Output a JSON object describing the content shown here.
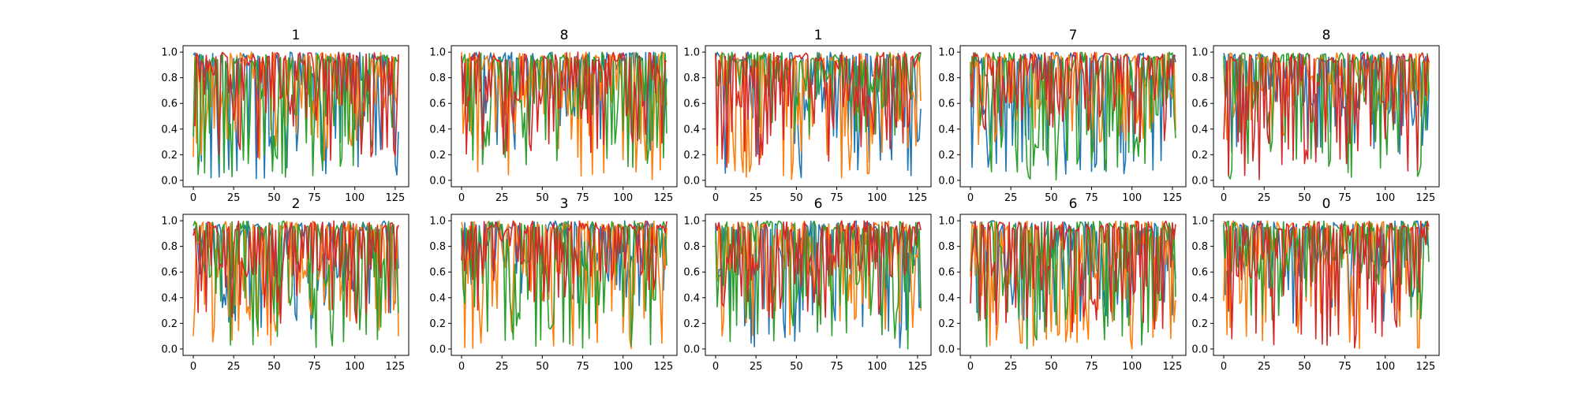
{
  "chart_data": [
    {
      "type": "line",
      "title": "1",
      "x_range": [
        0,
        127
      ],
      "ylim": [
        0.0,
        1.0
      ],
      "xticks": [
        "0",
        "25",
        "50",
        "75",
        "100",
        "125"
      ],
      "yticks": [
        "0.0",
        "0.2",
        "0.4",
        "0.6",
        "0.8",
        "1.0"
      ],
      "grid": false,
      "series_colors": [
        "#1f77b4",
        "#ff7f0e",
        "#2ca02c",
        "#d62728"
      ],
      "series_levels": [
        [
          0.0,
          1.0
        ],
        [
          0.15,
          1.0
        ],
        [
          0.0,
          1.0
        ],
        [
          0.15,
          1.0
        ]
      ],
      "seed": 11
    },
    {
      "type": "line",
      "title": "8",
      "x_range": [
        0,
        127
      ],
      "ylim": [
        0.0,
        1.0
      ],
      "xticks": [
        "0",
        "25",
        "50",
        "75",
        "100",
        "125"
      ],
      "yticks": [
        "0.0",
        "0.2",
        "0.4",
        "0.6",
        "0.8",
        "1.0"
      ],
      "grid": false,
      "series_colors": [
        "#1f77b4",
        "#ff7f0e",
        "#2ca02c",
        "#d62728"
      ],
      "series_levels": [
        [
          0.2,
          1.0
        ],
        [
          0.0,
          1.0
        ],
        [
          0.1,
          1.0
        ],
        [
          0.2,
          1.0
        ]
      ],
      "seed": 23
    },
    {
      "type": "line",
      "title": "1",
      "x_range": [
        0,
        127
      ],
      "ylim": [
        0.0,
        1.0
      ],
      "xticks": [
        "0",
        "25",
        "50",
        "75",
        "100",
        "125"
      ],
      "yticks": [
        "0.0",
        "0.2",
        "0.4",
        "0.6",
        "0.8",
        "1.0"
      ],
      "grid": false,
      "series_colors": [
        "#1f77b4",
        "#ff7f0e",
        "#2ca02c",
        "#d62728"
      ],
      "series_levels": [
        [
          0.0,
          1.0
        ],
        [
          0.0,
          1.0
        ],
        [
          0.3,
          1.0
        ],
        [
          0.1,
          1.0
        ]
      ],
      "seed": 37
    },
    {
      "type": "line",
      "title": "7",
      "x_range": [
        0,
        127
      ],
      "ylim": [
        0.0,
        1.0
      ],
      "xticks": [
        "0",
        "25",
        "50",
        "75",
        "100",
        "125"
      ],
      "yticks": [
        "0.0",
        "0.2",
        "0.4",
        "0.6",
        "0.8",
        "1.0"
      ],
      "grid": false,
      "series_colors": [
        "#1f77b4",
        "#ff7f0e",
        "#2ca02c",
        "#d62728"
      ],
      "series_levels": [
        [
          0.0,
          1.0
        ],
        [
          0.2,
          1.0
        ],
        [
          0.0,
          1.0
        ],
        [
          0.3,
          1.0
        ]
      ],
      "seed": 41
    },
    {
      "type": "line",
      "title": "8",
      "x_range": [
        0,
        127
      ],
      "ylim": [
        0.0,
        1.0
      ],
      "xticks": [
        "0",
        "25",
        "50",
        "75",
        "100",
        "125"
      ],
      "yticks": [
        "0.0",
        "0.2",
        "0.4",
        "0.6",
        "0.8",
        "1.0"
      ],
      "grid": false,
      "series_colors": [
        "#1f77b4",
        "#ff7f0e",
        "#2ca02c",
        "#d62728"
      ],
      "series_levels": [
        [
          0.2,
          1.0
        ],
        [
          0.3,
          1.0
        ],
        [
          0.0,
          1.0
        ],
        [
          0.0,
          1.0
        ]
      ],
      "seed": 53
    },
    {
      "type": "line",
      "title": "2",
      "x_range": [
        0,
        127
      ],
      "ylim": [
        0.0,
        1.0
      ],
      "xticks": [
        "0",
        "25",
        "50",
        "75",
        "100",
        "125"
      ],
      "yticks": [
        "0.0",
        "0.2",
        "0.4",
        "0.6",
        "0.8",
        "1.0"
      ],
      "grid": false,
      "series_colors": [
        "#1f77b4",
        "#ff7f0e",
        "#2ca02c",
        "#d62728"
      ],
      "series_levels": [
        [
          0.15,
          1.0
        ],
        [
          0.0,
          1.0
        ],
        [
          0.0,
          1.0
        ],
        [
          0.2,
          1.0
        ]
      ],
      "seed": 61
    },
    {
      "type": "line",
      "title": "3",
      "x_range": [
        0,
        127
      ],
      "ylim": [
        0.0,
        1.0
      ],
      "xticks": [
        "0",
        "25",
        "50",
        "75",
        "100",
        "125"
      ],
      "yticks": [
        "0.0",
        "0.2",
        "0.4",
        "0.6",
        "0.8",
        "1.0"
      ],
      "grid": false,
      "series_colors": [
        "#1f77b4",
        "#ff7f0e",
        "#2ca02c",
        "#d62728"
      ],
      "series_levels": [
        [
          0.3,
          1.0
        ],
        [
          0.0,
          1.0
        ],
        [
          0.0,
          1.0
        ],
        [
          0.3,
          1.0
        ]
      ],
      "seed": 73
    },
    {
      "type": "line",
      "title": "6",
      "x_range": [
        0,
        127
      ],
      "ylim": [
        0.0,
        1.0
      ],
      "xticks": [
        "0",
        "25",
        "50",
        "75",
        "100",
        "125"
      ],
      "yticks": [
        "0.0",
        "0.2",
        "0.4",
        "0.6",
        "0.8",
        "1.0"
      ],
      "grid": false,
      "series_colors": [
        "#1f77b4",
        "#ff7f0e",
        "#2ca02c",
        "#d62728"
      ],
      "series_levels": [
        [
          0.0,
          1.0
        ],
        [
          0.1,
          1.0
        ],
        [
          0.0,
          1.0
        ],
        [
          0.2,
          1.0
        ]
      ],
      "seed": 89
    },
    {
      "type": "line",
      "title": "6",
      "x_range": [
        0,
        127
      ],
      "ylim": [
        0.0,
        1.0
      ],
      "xticks": [
        "0",
        "25",
        "50",
        "75",
        "100",
        "125"
      ],
      "yticks": [
        "0.0",
        "0.2",
        "0.4",
        "0.6",
        "0.8",
        "1.0"
      ],
      "grid": false,
      "series_colors": [
        "#1f77b4",
        "#ff7f0e",
        "#2ca02c",
        "#d62728"
      ],
      "series_levels": [
        [
          0.2,
          1.0
        ],
        [
          0.0,
          1.0
        ],
        [
          0.0,
          1.0
        ],
        [
          0.1,
          1.0
        ]
      ],
      "seed": 97
    },
    {
      "type": "line",
      "title": "0",
      "x_range": [
        0,
        127
      ],
      "ylim": [
        0.0,
        1.0
      ],
      "xticks": [
        "0",
        "25",
        "50",
        "75",
        "100",
        "125"
      ],
      "yticks": [
        "0.0",
        "0.2",
        "0.4",
        "0.6",
        "0.8",
        "1.0"
      ],
      "grid": false,
      "series_colors": [
        "#1f77b4",
        "#ff7f0e",
        "#2ca02c",
        "#d62728"
      ],
      "series_levels": [
        [
          0.2,
          1.0
        ],
        [
          0.0,
          1.0
        ],
        [
          0.2,
          1.0
        ],
        [
          0.0,
          1.0
        ]
      ],
      "seed": 101
    }
  ]
}
